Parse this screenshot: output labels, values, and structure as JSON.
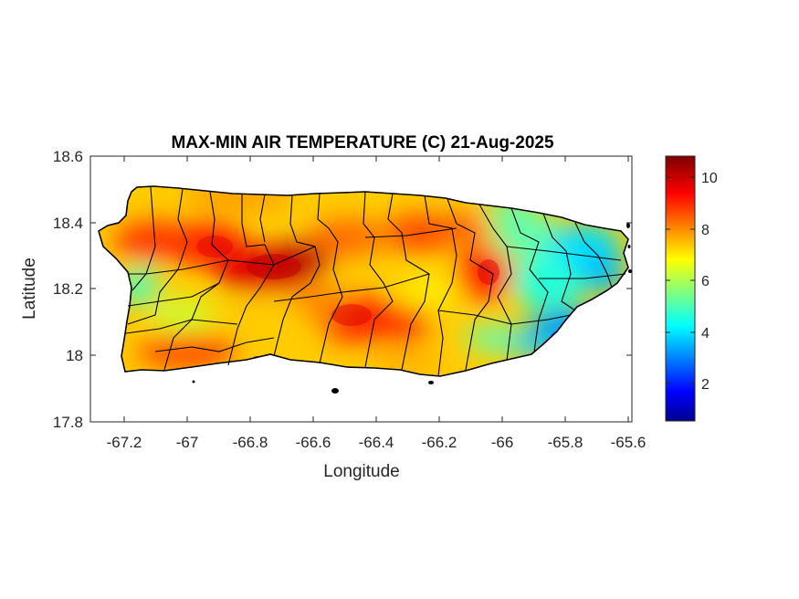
{
  "map": {
    "title": "MAX-MIN AIR TEMPERATURE (C) 21-Aug-2025",
    "xlabel": "Longitude",
    "ylabel": "Latitude",
    "x_ticks": [
      "-67.2",
      "-67",
      "-66.8",
      "-66.6",
      "-66.4",
      "-66.2",
      "-66",
      "-65.8",
      "-65.6"
    ],
    "y_ticks": [
      "18.6",
      "18.4",
      "18.2",
      "18",
      "17.8"
    ],
    "colorbar": {
      "colormap": "jet",
      "range": [
        0.5,
        10.8
      ],
      "ticks": [
        "10",
        "8",
        "6",
        "4",
        "2"
      ],
      "colors": [
        "#00008f",
        "#0000ff",
        "#00ffff",
        "#ffff00",
        "#ff0000",
        "#800000"
      ]
    },
    "region": "Puerto Rico",
    "border_color": "#000000"
  }
}
